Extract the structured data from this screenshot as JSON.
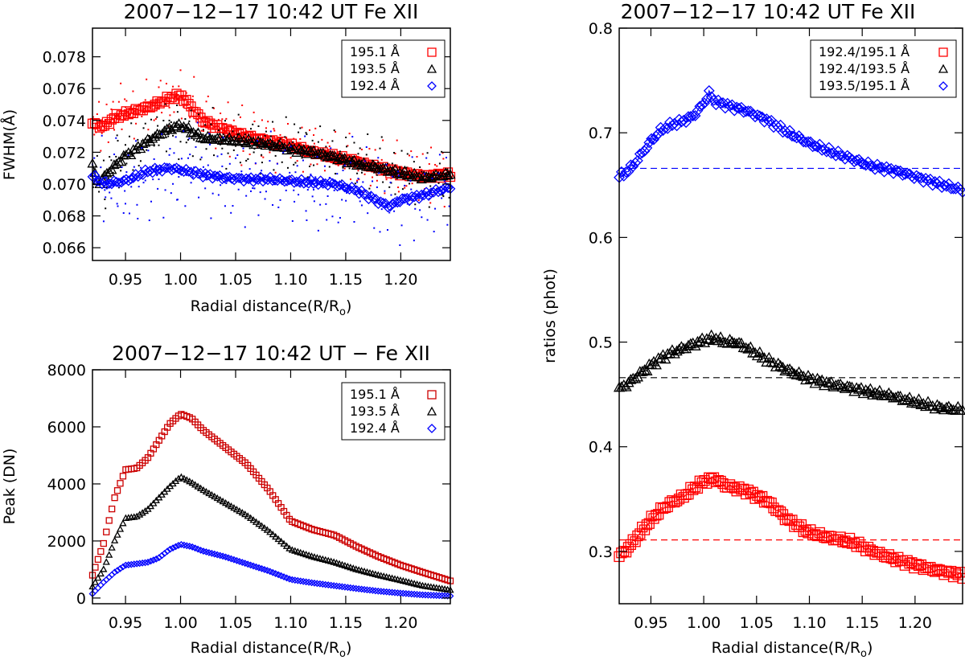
{
  "chart_data": [
    {
      "id": "fwhm",
      "type": "scatter",
      "title": "2007−12−17 10:42 UT   Fe XII",
      "xlabel": "Radial distance(R/R",
      "xlabel_sub": "o",
      "xlabel_end": ")",
      "ylabel": "FWHM(Å)",
      "xlim": [
        0.92,
        1.245
      ],
      "ylim": [
        0.0652,
        0.0798
      ],
      "xticks": [
        0.95,
        1.0,
        1.05,
        1.1,
        1.15,
        1.2
      ],
      "xtick_labels": [
        "0.95",
        "1.00",
        "1.05",
        "1.10",
        "1.15",
        "1.20"
      ],
      "yticks": [
        0.066,
        0.068,
        0.07,
        0.072,
        0.074,
        0.076,
        0.078
      ],
      "ytick_labels": [
        "0.066",
        "0.068",
        "0.070",
        "0.072",
        "0.074",
        "0.076",
        "0.078"
      ],
      "legend_position": "top-right",
      "series": [
        {
          "name": "195.1 Å",
          "color": "#ff0000",
          "marker": "square",
          "x": [
            0.92,
            0.93,
            0.94,
            0.95,
            0.96,
            0.97,
            0.98,
            0.99,
            1.0,
            1.01,
            1.02,
            1.04,
            1.06,
            1.08,
            1.1,
            1.12,
            1.14,
            1.16,
            1.18,
            1.2,
            1.22,
            1.245
          ],
          "values": [
            0.0738,
            0.0736,
            0.0742,
            0.0744,
            0.0746,
            0.0748,
            0.0751,
            0.0754,
            0.0756,
            0.0748,
            0.074,
            0.0734,
            0.073,
            0.0727,
            0.0724,
            0.072,
            0.0717,
            0.0714,
            0.071,
            0.0707,
            0.0705,
            0.0706
          ]
        },
        {
          "name": "193.5 Å",
          "color": "#000000",
          "marker": "triangle",
          "x": [
            0.92,
            0.925,
            0.935,
            0.95,
            0.96,
            0.97,
            0.98,
            0.99,
            1.0,
            1.01,
            1.02,
            1.04,
            1.06,
            1.08,
            1.1,
            1.12,
            1.14,
            1.16,
            1.18,
            1.2,
            1.22,
            1.245
          ],
          "values": [
            0.0712,
            0.07,
            0.0708,
            0.0718,
            0.0722,
            0.0727,
            0.0731,
            0.0735,
            0.0737,
            0.0733,
            0.0729,
            0.0728,
            0.0727,
            0.0725,
            0.0722,
            0.072,
            0.0717,
            0.0713,
            0.071,
            0.0707,
            0.0704,
            0.0706
          ]
        },
        {
          "name": "192.4 Å",
          "color": "#0000ff",
          "marker": "diamond",
          "x": [
            0.92,
            0.93,
            0.94,
            0.95,
            0.96,
            0.97,
            0.98,
            0.99,
            1.0,
            1.02,
            1.04,
            1.06,
            1.08,
            1.1,
            1.12,
            1.14,
            1.16,
            1.18,
            1.19,
            1.2,
            1.22,
            1.245
          ],
          "values": [
            0.0705,
            0.07,
            0.0701,
            0.0702,
            0.0705,
            0.0708,
            0.0709,
            0.071,
            0.0709,
            0.0706,
            0.0704,
            0.0703,
            0.0703,
            0.0702,
            0.0701,
            0.07,
            0.0696,
            0.0689,
            0.0686,
            0.069,
            0.0693,
            0.0698
          ]
        }
      ]
    },
    {
      "id": "peak",
      "type": "scatter",
      "title": "2007−12−17 10:42 UT −   Fe XII",
      "xlabel": "Radial distance(R/R",
      "xlabel_sub": "o",
      "xlabel_end": ")",
      "ylabel": "Peak (DN)",
      "xlim": [
        0.92,
        1.245
      ],
      "ylim": [
        -200,
        8000
      ],
      "xticks": [
        0.95,
        1.0,
        1.05,
        1.1,
        1.15,
        1.2
      ],
      "xtick_labels": [
        "0.95",
        "1.00",
        "1.05",
        "1.10",
        "1.15",
        "1.20"
      ],
      "yticks": [
        0,
        2000,
        4000,
        6000,
        8000
      ],
      "ytick_labels": [
        "0",
        "2000",
        "4000",
        "6000",
        "8000"
      ],
      "legend_position": "top-right",
      "series": [
        {
          "name": "195.1 Å",
          "color": "#cc0000",
          "marker": "square",
          "x": [
            0.92,
            0.93,
            0.94,
            0.95,
            0.96,
            0.97,
            0.98,
            0.99,
            1.0,
            1.01,
            1.02,
            1.04,
            1.06,
            1.08,
            1.1,
            1.12,
            1.14,
            1.16,
            1.18,
            1.2,
            1.22,
            1.245
          ],
          "values": [
            800,
            1900,
            3500,
            4500,
            4550,
            4900,
            5500,
            6100,
            6450,
            6300,
            5900,
            5300,
            4700,
            3800,
            2700,
            2400,
            2200,
            1800,
            1450,
            1150,
            900,
            600
          ]
        },
        {
          "name": "193.5 Å",
          "color": "#000000",
          "marker": "triangle",
          "x": [
            0.92,
            0.93,
            0.94,
            0.95,
            0.96,
            0.97,
            0.98,
            0.99,
            1.0,
            1.01,
            1.02,
            1.04,
            1.06,
            1.08,
            1.1,
            1.12,
            1.14,
            1.16,
            1.18,
            1.2,
            1.22,
            1.245
          ],
          "values": [
            400,
            1000,
            2000,
            2800,
            2850,
            3100,
            3500,
            3900,
            4250,
            4050,
            3800,
            3350,
            2900,
            2350,
            1700,
            1450,
            1250,
            1000,
            800,
            620,
            430,
            280
          ]
        },
        {
          "name": "192.4 Å",
          "color": "#0000ff",
          "marker": "diamond",
          "x": [
            0.92,
            0.93,
            0.94,
            0.95,
            0.96,
            0.97,
            0.98,
            0.99,
            1.0,
            1.01,
            1.02,
            1.04,
            1.06,
            1.08,
            1.1,
            1.12,
            1.14,
            1.16,
            1.18,
            1.2,
            1.22,
            1.245
          ],
          "values": [
            150,
            550,
            900,
            1150,
            1200,
            1250,
            1400,
            1700,
            1880,
            1800,
            1650,
            1450,
            1200,
            950,
            650,
            530,
            430,
            330,
            240,
            170,
            110,
            70
          ]
        }
      ]
    },
    {
      "id": "ratios",
      "type": "scatter",
      "title": "2007−12−17 10:42 UT   Fe XII",
      "xlabel": "Radial distance(R/R",
      "xlabel_sub": "o",
      "xlabel_end": ")",
      "ylabel": "ratios (phot)",
      "xlim": [
        0.92,
        1.245
      ],
      "ylim": [
        0.25,
        0.8
      ],
      "xticks": [
        0.95,
        1.0,
        1.05,
        1.1,
        1.15,
        1.2
      ],
      "xtick_labels": [
        "0.95",
        "1.00",
        "1.05",
        "1.10",
        "1.15",
        "1.20"
      ],
      "yticks": [
        0.3,
        0.4,
        0.5,
        0.6,
        0.7,
        0.8
      ],
      "ytick_labels": [
        "0.3",
        "0.4",
        "0.5",
        "0.6",
        "0.7",
        "0.8"
      ],
      "legend_position": "top-right",
      "reference_lines": [
        {
          "y": 0.666,
          "color": "#0000ff",
          "style": "dashed"
        },
        {
          "y": 0.466,
          "color": "#000000",
          "style": "dashed"
        },
        {
          "y": 0.311,
          "color": "#ff0000",
          "style": "dashed"
        }
      ],
      "series": [
        {
          "name": "192.4/195.1 Å",
          "color": "#ff0000",
          "marker": "square",
          "x": [
            0.92,
            0.93,
            0.94,
            0.95,
            0.96,
            0.97,
            0.98,
            0.99,
            1.0,
            1.01,
            1.02,
            1.04,
            1.06,
            1.08,
            1.1,
            1.12,
            1.14,
            1.16,
            1.18,
            1.2,
            1.22,
            1.245
          ],
          "values": [
            0.295,
            0.305,
            0.318,
            0.33,
            0.34,
            0.347,
            0.352,
            0.36,
            0.367,
            0.37,
            0.363,
            0.358,
            0.348,
            0.33,
            0.318,
            0.313,
            0.309,
            0.3,
            0.293,
            0.287,
            0.282,
            0.277
          ]
        },
        {
          "name": "192.4/193.5 Å",
          "color": "#000000",
          "marker": "triangle",
          "x": [
            0.92,
            0.93,
            0.94,
            0.95,
            0.96,
            0.97,
            0.98,
            0.99,
            1.0,
            1.01,
            1.02,
            1.03,
            1.04,
            1.06,
            1.08,
            1.1,
            1.12,
            1.14,
            1.16,
            1.18,
            1.2,
            1.22,
            1.245
          ],
          "values": [
            0.455,
            0.462,
            0.47,
            0.478,
            0.485,
            0.49,
            0.494,
            0.498,
            0.502,
            0.504,
            0.5,
            0.5,
            0.495,
            0.483,
            0.473,
            0.465,
            0.46,
            0.456,
            0.452,
            0.448,
            0.443,
            0.438,
            0.435
          ]
        },
        {
          "name": "193.5/195.1 Å",
          "color": "#0000ff",
          "marker": "diamond",
          "x": [
            0.92,
            0.93,
            0.94,
            0.95,
            0.96,
            0.97,
            0.98,
            0.99,
            1.0,
            1.005,
            1.01,
            1.02,
            1.04,
            1.06,
            1.08,
            1.1,
            1.12,
            1.14,
            1.16,
            1.18,
            1.2,
            1.22,
            1.245
          ],
          "values": [
            0.658,
            0.665,
            0.678,
            0.692,
            0.703,
            0.708,
            0.711,
            0.716,
            0.728,
            0.738,
            0.73,
            0.727,
            0.721,
            0.712,
            0.7,
            0.69,
            0.682,
            0.675,
            0.668,
            0.664,
            0.658,
            0.652,
            0.645
          ]
        }
      ]
    }
  ]
}
